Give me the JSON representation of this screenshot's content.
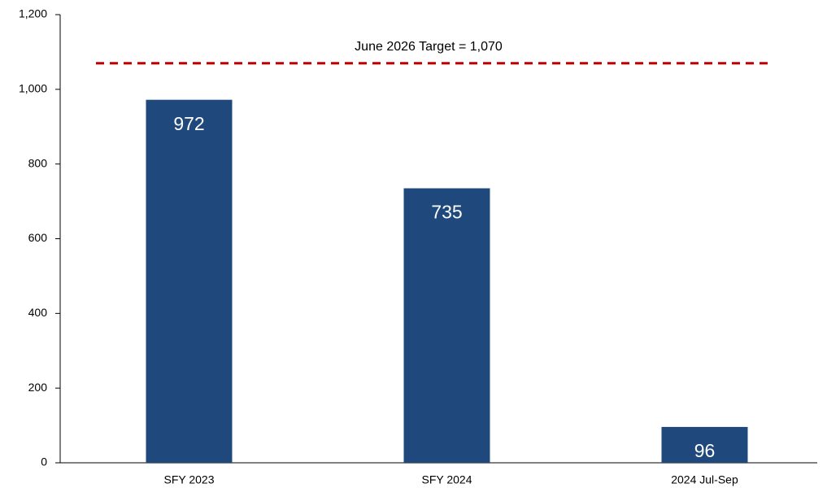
{
  "chart_data": {
    "type": "bar",
    "categories": [
      "SFY 2023",
      "SFY 2024",
      "2024 Jul-Sep"
    ],
    "values": [
      972,
      735,
      96
    ],
    "color": "#1f497d",
    "ylim": [
      0,
      1200
    ],
    "yticks": [
      0,
      200,
      400,
      600,
      800,
      {
        "value": 1000,
        "label": "1,000"
      },
      {
        "value": 1200,
        "label": "1,200"
      }
    ],
    "target_line": {
      "value": 1070,
      "color": "#c00000",
      "label": "June 2026 Target = 1,070"
    }
  }
}
